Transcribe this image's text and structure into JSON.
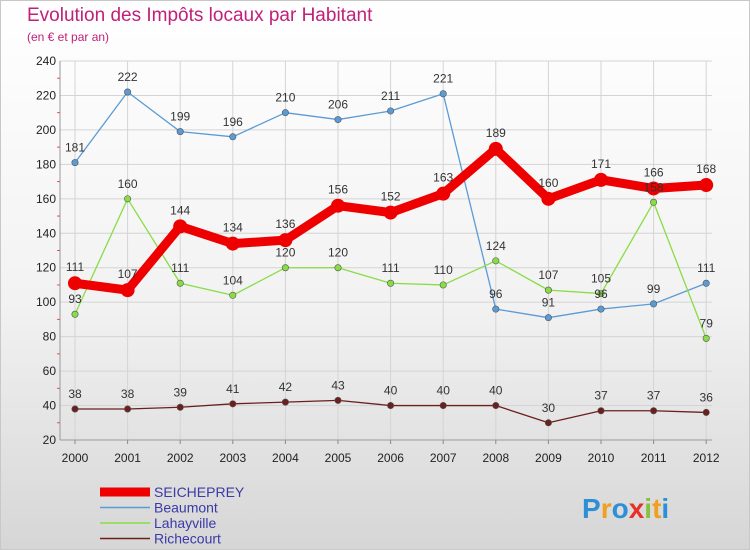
{
  "chart_data": {
    "type": "line",
    "title": "Evolution des Impôts locaux par Habitant",
    "subtitle": "(en € et par an)",
    "xlabel": "",
    "ylabel": "",
    "categories": [
      "2000",
      "2001",
      "2002",
      "2003",
      "2004",
      "2005",
      "2006",
      "2007",
      "2008",
      "2009",
      "2010",
      "2011",
      "2012"
    ],
    "ylim": [
      20,
      240
    ],
    "yticks": [
      "20",
      "40",
      "60",
      "80",
      "100",
      "120",
      "140",
      "160",
      "180",
      "200",
      "220",
      "240"
    ],
    "grid": true,
    "legend_position": "bottom-left",
    "series": [
      {
        "name": "SEICHEPREY",
        "color": "#ee0000",
        "labels_above": false,
        "values": [
          111,
          107,
          144,
          134,
          136,
          156,
          152,
          163,
          189,
          160,
          171,
          166,
          168
        ]
      },
      {
        "name": "Beaumont",
        "color": "#5b9bd5",
        "labels_above": true,
        "values": [
          181,
          222,
          199,
          196,
          210,
          206,
          211,
          221,
          96,
          91,
          96,
          99,
          111
        ]
      },
      {
        "name": "Lahayville",
        "color": "#88dd44",
        "labels_above": true,
        "values": [
          93,
          160,
          111,
          104,
          120,
          120,
          111,
          110,
          124,
          107,
          105,
          158,
          79
        ]
      },
      {
        "name": "Richecourt",
        "color": "#6b1f1f",
        "labels_above": true,
        "values": [
          38,
          38,
          39,
          41,
          42,
          43,
          40,
          40,
          40,
          30,
          37,
          37,
          36
        ]
      }
    ]
  },
  "logo": {
    "text": "Proxiti",
    "letters": [
      "P",
      "r",
      "o",
      "x",
      "i",
      "t",
      "i"
    ],
    "colors": [
      "#2d8fd5",
      "#f0a020",
      "#2d8fd5",
      "#e8302a",
      "#88c040",
      "#f0a020",
      "#2d8fd5"
    ]
  }
}
